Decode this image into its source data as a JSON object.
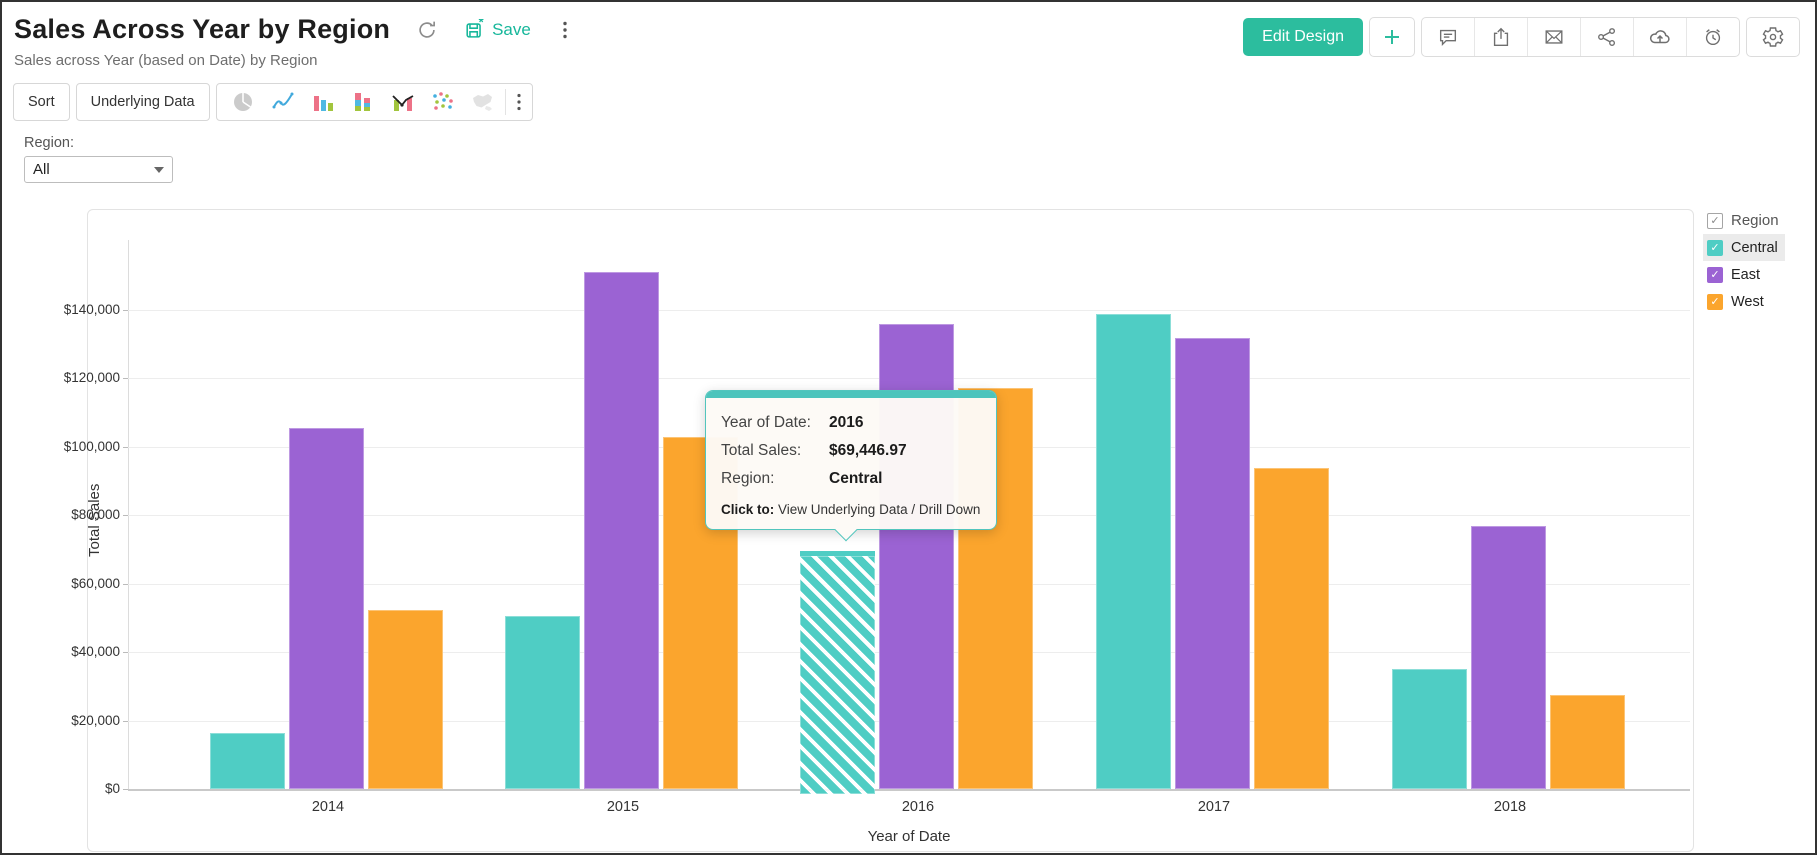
{
  "header": {
    "title": "Sales Across Year by Region",
    "subtitle": "Sales across Year (based on Date) by Region",
    "save_label": "Save",
    "edit_design_label": "Edit Design",
    "accent_color": "#2cbd9e",
    "action_icons": [
      "refresh",
      "save",
      "more-options",
      "add",
      "comment",
      "export",
      "email",
      "share",
      "cloud-upload",
      "schedule",
      "settings"
    ]
  },
  "toolbar": {
    "sort_label": "Sort",
    "underlying_data_label": "Underlying Data",
    "chart_type_icons": [
      "pie-chart",
      "line-chart",
      "bar-chart",
      "stacked-bar-chart",
      "combo-chart",
      "scatter-chart",
      "map-chart",
      "more-chart-types"
    ]
  },
  "filter": {
    "label": "Region:",
    "value": "All"
  },
  "legend": {
    "title": "Region",
    "items": [
      {
        "label": "Central",
        "color": "#4fcdc4",
        "checked": true,
        "highlighted": true
      },
      {
        "label": "East",
        "color": "#9b63d3",
        "checked": true,
        "highlighted": false
      },
      {
        "label": "West",
        "color": "#fba52d",
        "checked": true,
        "highlighted": false
      }
    ]
  },
  "tooltip": {
    "rows": [
      {
        "label": "Year of Date:",
        "value": "2016"
      },
      {
        "label": "Total Sales:",
        "value": "$69,446.97"
      },
      {
        "label": "Region:",
        "value": "Central"
      }
    ],
    "footer_label": "Click to:",
    "footer_text": " View Underlying Data / Drill Down"
  },
  "chart_data": {
    "type": "bar",
    "title": "Sales Across Year by Region",
    "xlabel": "Year of Date",
    "ylabel": "Total Sales",
    "categories": [
      "2014",
      "2015",
      "2016",
      "2017",
      "2018"
    ],
    "series": [
      {
        "name": "Central",
        "color": "#4fcdc4",
        "values": [
          16400,
          50600,
          69446.97,
          138600,
          35100
        ]
      },
      {
        "name": "East",
        "color": "#9b63d3",
        "values": [
          105500,
          151000,
          135800,
          131700,
          76700
        ]
      },
      {
        "name": "West",
        "color": "#fba52d",
        "values": [
          52400,
          102700,
          117000,
          93800,
          27300
        ]
      }
    ],
    "ylim": [
      0,
      160000
    ],
    "ytick_interval": 20000,
    "yticks": [
      "$0",
      "$20,000",
      "$40,000",
      "$60,000",
      "$80,000",
      "$100,000",
      "$120,000",
      "$140,000"
    ],
    "grid": true,
    "legend_position": "right",
    "highlighted_bar": {
      "category": "2016",
      "series": "Central"
    },
    "highlighted_value_label": "$69,446.97"
  }
}
